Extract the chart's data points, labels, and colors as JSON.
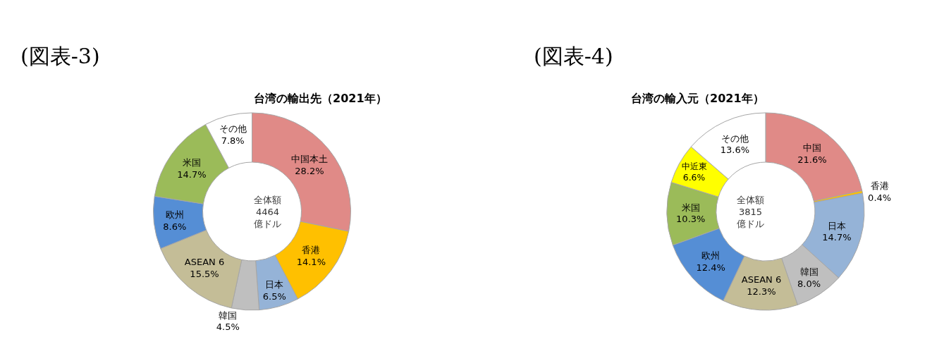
{
  "chart_data": [
    {
      "type": "donut",
      "title": "台湾の輸出先（2021年）",
      "annotations": [
        "(図表-3)",
        "全体額\n4464\n億ドル"
      ],
      "categories": [
        "中国本土",
        "香港",
        "日本",
        "韓国",
        "ASEAN 6",
        "欧州",
        "米国",
        "その他"
      ],
      "values": [
        28.2,
        14.1,
        6.5,
        4.5,
        15.5,
        8.6,
        14.7,
        7.8
      ],
      "value_labels": [
        "28.2%",
        "14.1%",
        "6.5%",
        "4.5%",
        "15.5%",
        "8.6%",
        "14.7%",
        "7.8%"
      ],
      "colors": [
        "#e08a87",
        "#ffc000",
        "#95b3d7",
        "#bfbfbf",
        "#c4bd97",
        "#558ed5",
        "#9bbb59",
        "#ffffff"
      ]
    },
    {
      "type": "donut",
      "title": "台湾の輸入元（2021年）",
      "annotations": [
        "(図表-4)",
        "全体額\n3815\n億ドル"
      ],
      "categories": [
        "中国",
        "香港",
        "日本",
        "韓国",
        "ASEAN 6",
        "欧州",
        "米国",
        "中近東",
        "その他"
      ],
      "values": [
        21.6,
        0.4,
        14.7,
        8.0,
        12.3,
        12.4,
        10.3,
        6.6,
        13.6
      ],
      "value_labels": [
        "21.6%",
        "0.4%",
        "14.7%",
        "8.0%",
        "12.3%",
        "12.4%",
        "10.3%",
        "6.6%",
        "13.6%"
      ],
      "colors": [
        "#e08a87",
        "#ffc000",
        "#95b3d7",
        "#bfbfbf",
        "#c4bd97",
        "#558ed5",
        "#9bbb59",
        "#ffff00",
        "#ffffff"
      ]
    }
  ]
}
